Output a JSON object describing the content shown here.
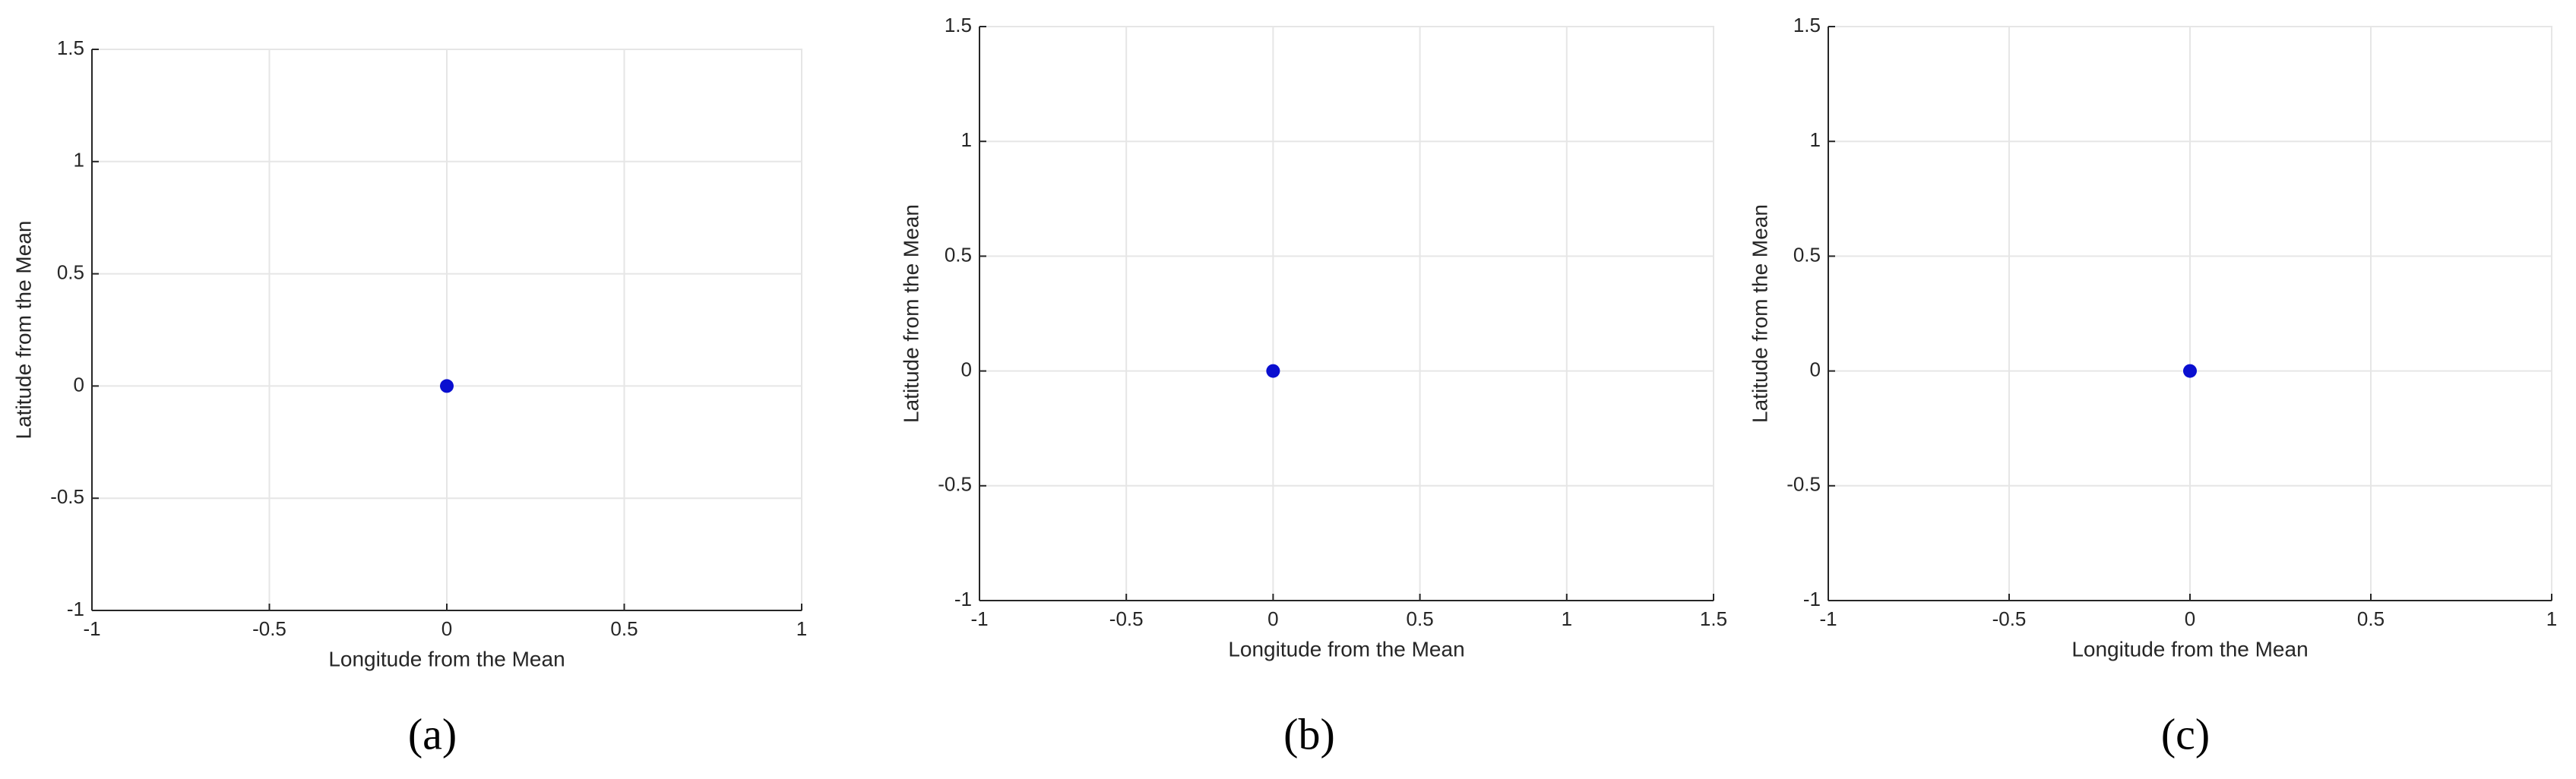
{
  "chart_data": [
    {
      "type": "scatter",
      "xlabel": "Longitude from the Mean",
      "ylabel": "Latitude from the Mean",
      "caption": "(a)",
      "xlim": [
        -1,
        1
      ],
      "xticks": [
        -1,
        -0.5,
        0,
        0.5,
        1
      ],
      "ylim": [
        -1,
        1.5
      ],
      "yticks": [
        -1,
        -0.5,
        0,
        0.5,
        1,
        1.5
      ],
      "grid": true,
      "series": [
        {
          "color": "#0a0fd0",
          "x": [
            0
          ],
          "values": [
            0
          ]
        }
      ]
    },
    {
      "type": "scatter",
      "xlabel": "Longitude from the Mean",
      "ylabel": "Latitude from the Mean",
      "caption": "(b)",
      "xlim": [
        -1,
        1.5
      ],
      "xticks": [
        -1,
        -0.5,
        0,
        0.5,
        1,
        1.5
      ],
      "ylim": [
        -1,
        1.5
      ],
      "yticks": [
        -1,
        -0.5,
        0,
        0.5,
        1,
        1.5
      ],
      "grid": true,
      "series": [
        {
          "color": "#0a0fd0",
          "x": [
            0
          ],
          "values": [
            0
          ]
        }
      ]
    },
    {
      "type": "scatter",
      "xlabel": "Longitude from the Mean",
      "ylabel": "Latitude from the Mean",
      "caption": "(c)",
      "xlim": [
        -1,
        1
      ],
      "xticks": [
        -1,
        -0.5,
        0,
        0.5,
        1
      ],
      "ylim": [
        -1,
        1.5
      ],
      "yticks": [
        -1,
        -0.5,
        0,
        0.5,
        1,
        1.5
      ],
      "grid": true,
      "series": [
        {
          "color": "#0a0fd0",
          "x": [
            0
          ],
          "values": [
            0
          ]
        }
      ]
    }
  ]
}
